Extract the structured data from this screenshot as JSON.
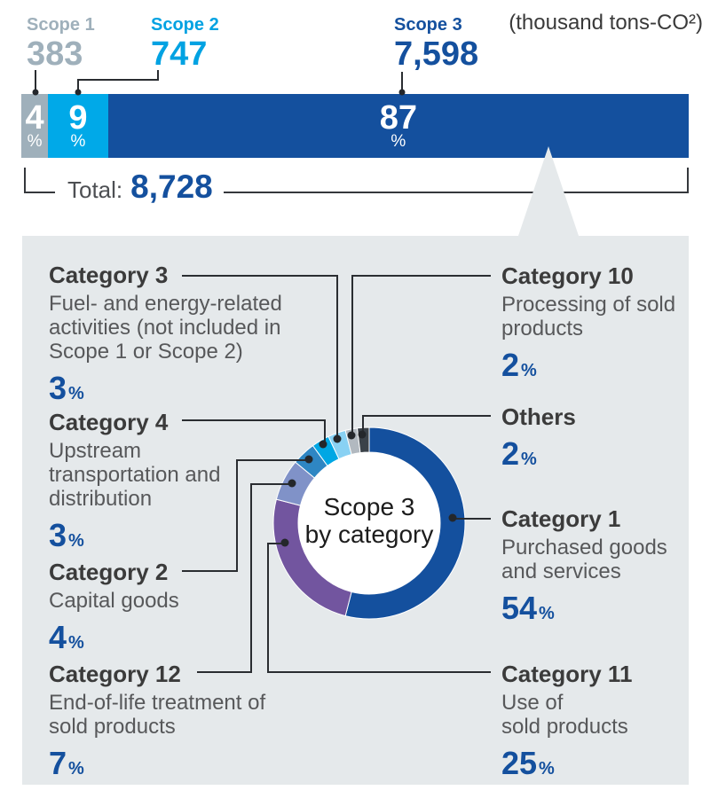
{
  "units_label": "(thousand tons-CO²)",
  "percent_sign": "%",
  "header": {
    "scopes": [
      {
        "label": "Scope 1",
        "value": "383",
        "color": "#9fb0bb"
      },
      {
        "label": "Scope 2",
        "value": "747",
        "color": "#00a2e2"
      },
      {
        "label": "Scope 3",
        "value": "7,598",
        "color": "#14509e"
      }
    ]
  },
  "total": {
    "label": "Total:",
    "value": "8,728"
  },
  "donut_center": {
    "line1": "Scope 3",
    "line2": "by category"
  },
  "categories": {
    "left": [
      {
        "title": "Category 3",
        "lines": [
          "Fuel- and energy-related",
          "activities (not included in",
          "Scope 1 or Scope 2)"
        ],
        "percent": "3"
      },
      {
        "title": "Category 4",
        "lines": [
          "Upstream",
          "transportation and",
          "distribution"
        ],
        "percent": "3"
      },
      {
        "title": "Category 2",
        "lines": [
          "Capital goods"
        ],
        "percent": "4"
      },
      {
        "title": "Category 12",
        "lines": [
          "End-of-life treatment of",
          "sold products"
        ],
        "percent": "7"
      }
    ],
    "right": [
      {
        "title": "Category 10",
        "lines": [
          "Processing of sold",
          "products"
        ],
        "percent": "2"
      },
      {
        "title": "Others",
        "lines": [],
        "percent": "2"
      },
      {
        "title": "Category 1",
        "lines": [
          "Purchased goods",
          "and services"
        ],
        "percent": "54"
      },
      {
        "title": "Category 11",
        "lines": [
          "Use of",
          "sold products"
        ],
        "percent": "25"
      }
    ]
  },
  "chart_data": [
    {
      "type": "bar",
      "subtype": "stacked-horizontal",
      "title": "Greenhouse gas emissions by scope",
      "unit": "thousand tons-CO2",
      "categories": [
        "Scope 1",
        "Scope 2",
        "Scope 3"
      ],
      "values": [
        383,
        747,
        7598
      ],
      "percents": [
        4,
        9,
        87
      ],
      "colors": [
        "#9fb0bb",
        "#00a9e8",
        "#14509e"
      ],
      "total": 8728
    },
    {
      "type": "pie",
      "subtype": "donut",
      "title": "Scope 3 by category",
      "start_angle_deg": 0,
      "direction": "clockwise",
      "segments": [
        {
          "label": "Category 1",
          "description": "Purchased goods and services",
          "percent": 54,
          "color": "#14509e"
        },
        {
          "label": "Category 11",
          "description": "Use of sold products",
          "percent": 25,
          "color": "#72559f"
        },
        {
          "label": "Category 12",
          "description": "End-of-life treatment of sold products",
          "percent": 7,
          "color": "#8092c8"
        },
        {
          "label": "Category 2",
          "description": "Capital goods",
          "percent": 4,
          "color": "#2e86c3"
        },
        {
          "label": "Category 4",
          "description": "Upstream transportation and distribution",
          "percent": 3,
          "color": "#00a7e4"
        },
        {
          "label": "Category 3",
          "description": "Fuel- and energy-related activities (not included in Scope 1 or Scope 2)",
          "percent": 3,
          "color": "#89d1f3"
        },
        {
          "label": "Category 10",
          "description": "Processing of sold products",
          "percent": 2,
          "color": "#b2b9c0"
        },
        {
          "label": "Others",
          "description": "",
          "percent": 2,
          "color": "#3b4249"
        }
      ]
    }
  ]
}
